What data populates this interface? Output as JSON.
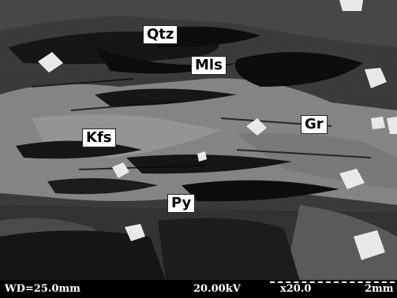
{
  "labels": {
    "qtz": "Qtz",
    "mls": "Mls",
    "gr": "Gr",
    "kfs": "Kfs",
    "py": "Py"
  },
  "databar": {
    "working_distance": "WD=25.0mm",
    "voltage": "20.00kV",
    "magnification": "x20.0",
    "scale": "2mm"
  },
  "colors": {
    "background": "#3d3d3d",
    "dark_phase": "#141414",
    "mid_phase": "#8a8a8a",
    "bright_phase": "#f2f2f2",
    "label_fill": "#ffffff",
    "databar_bg": "#000000",
    "databar_text": "#ffffff"
  }
}
